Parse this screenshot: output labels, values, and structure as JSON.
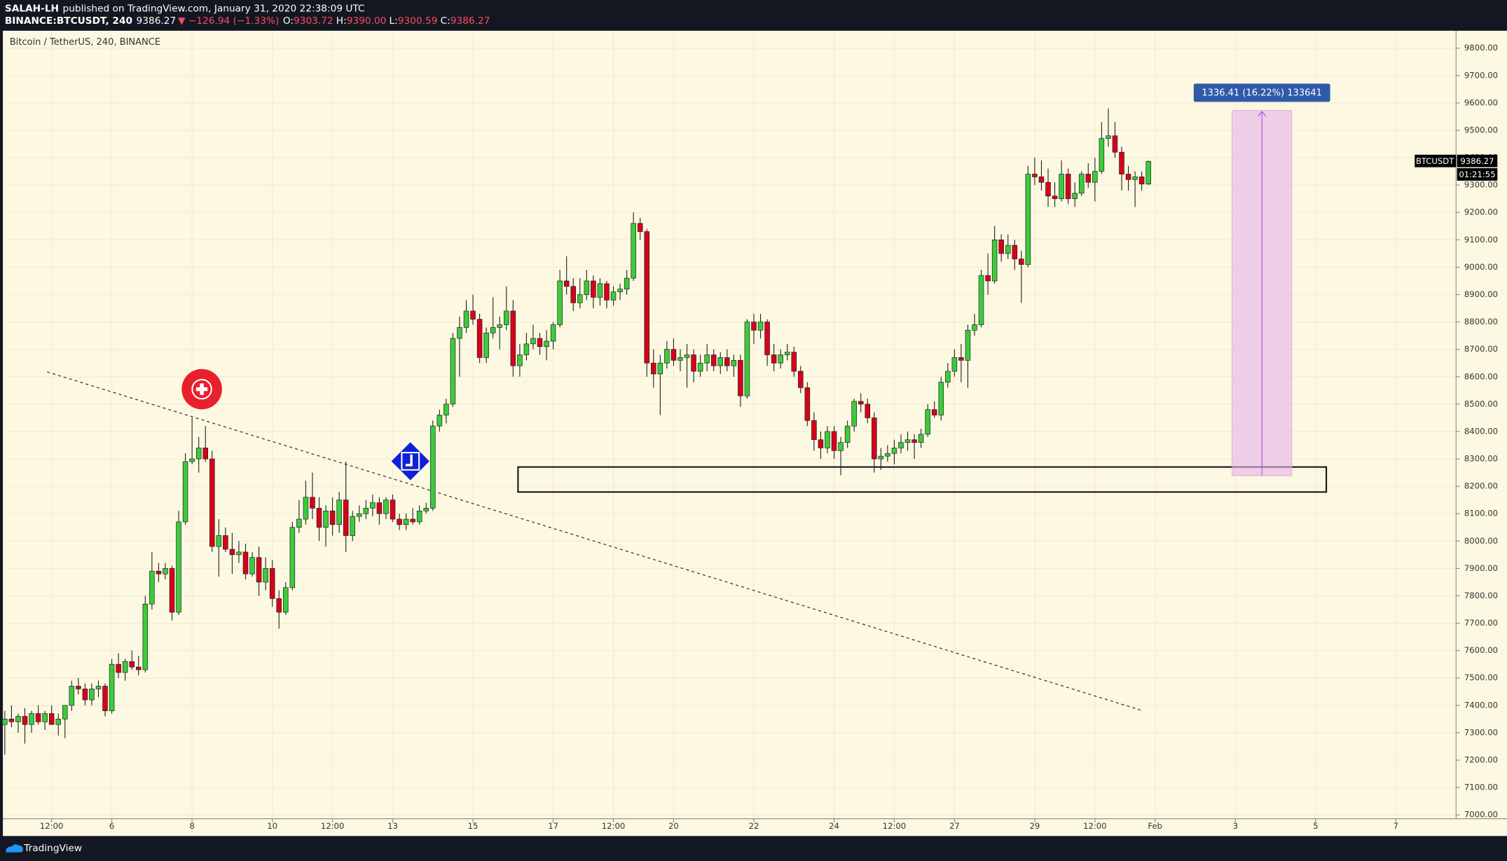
{
  "header": {
    "user": "SALAH-LH",
    "published": "published on TradingView.com, January 31, 2020 22:38:09 UTC",
    "symbol": "BINANCE:BTCUSDT, 240",
    "last": "9386.27",
    "change": "▼ −126.94 (−1.33%)",
    "open_label": "O:",
    "open": "9303.72",
    "high_label": "H:",
    "high": "9390.00",
    "low_label": "L:",
    "low": "9300.59",
    "close_label": "C:",
    "close": "9386.27"
  },
  "price_tag": {
    "symbol": "BTCUSDT",
    "price": "9386.27",
    "countdown": "01:21:55"
  },
  "measure_label": "1336.41 (16.22%) 133641",
  "footer": {
    "brand": "TradingView"
  },
  "chart_data": {
    "type": "candlestick",
    "title": "Bitcoin / TetherUS, 240, BINANCE",
    "up_color": "#3ccb3c",
    "down_color": "#d8001a",
    "border_color": "#1e1e1e",
    "grid": true,
    "xlim": [
      0,
      217
    ],
    "ylim": [
      6986,
      9860
    ],
    "xticks": [
      {
        "value": 7,
        "label": "12:00"
      },
      {
        "value": 16,
        "label": "6"
      },
      {
        "value": 28,
        "label": "8"
      },
      {
        "value": 40,
        "label": "10"
      },
      {
        "value": 49,
        "label": "12:00"
      },
      {
        "value": 58,
        "label": "13"
      },
      {
        "value": 70,
        "label": "15"
      },
      {
        "value": 82,
        "label": "17"
      },
      {
        "value": 91,
        "label": "12:00"
      },
      {
        "value": 100,
        "label": "20"
      },
      {
        "value": 112,
        "label": "22"
      },
      {
        "value": 124,
        "label": "24"
      },
      {
        "value": 133,
        "label": "12:00"
      },
      {
        "value": 142,
        "label": "27"
      },
      {
        "value": 154,
        "label": "29"
      },
      {
        "value": 163,
        "label": "12:00"
      },
      {
        "value": 172,
        "label": "Feb"
      },
      {
        "value": 184,
        "label": "3"
      },
      {
        "value": 196,
        "label": "5"
      },
      {
        "value": 208,
        "label": "7"
      }
    ],
    "yticks": [
      {
        "value": 7000,
        "label": "7000.00"
      },
      {
        "value": 7100,
        "label": "7100.00"
      },
      {
        "value": 7200,
        "label": "7200.00"
      },
      {
        "value": 7300,
        "label": "7300.00"
      },
      {
        "value": 7400,
        "label": "7400.00"
      },
      {
        "value": 7500,
        "label": "7500.00"
      },
      {
        "value": 7600,
        "label": "7600.00"
      },
      {
        "value": 7700,
        "label": "7700.00"
      },
      {
        "value": 7800,
        "label": "7800.00"
      },
      {
        "value": 7900,
        "label": "7900.00"
      },
      {
        "value": 8000,
        "label": "8000.00"
      },
      {
        "value": 8100,
        "label": "8100.00"
      },
      {
        "value": 8200,
        "label": "8200.00"
      },
      {
        "value": 8300,
        "label": "8300.00"
      },
      {
        "value": 8400,
        "label": "8400.00"
      },
      {
        "value": 8500,
        "label": "8500.00"
      },
      {
        "value": 8600,
        "label": "8600.00"
      },
      {
        "value": 8700,
        "label": "8700.00"
      },
      {
        "value": 8800,
        "label": "8800.00"
      },
      {
        "value": 8900,
        "label": "8900.00"
      },
      {
        "value": 9000,
        "label": "9000.00"
      },
      {
        "value": 9100,
        "label": "9100.00"
      },
      {
        "value": 9200,
        "label": "9200.00"
      },
      {
        "value": 9300,
        "label": "9300.00"
      },
      {
        "value": 9400,
        "label": "9400.00"
      },
      {
        "value": 9500,
        "label": "9500.00"
      },
      {
        "value": 9600,
        "label": "9600.00"
      },
      {
        "value": 9700,
        "label": "9700.00"
      },
      {
        "value": 9800,
        "label": "9800.00"
      }
    ],
    "candles": [
      [
        7330,
        7380,
        7220,
        7350
      ],
      [
        7350,
        7400,
        7320,
        7340
      ],
      [
        7340,
        7370,
        7300,
        7360
      ],
      [
        7360,
        7390,
        7260,
        7330
      ],
      [
        7330,
        7380,
        7300,
        7370
      ],
      [
        7370,
        7400,
        7330,
        7340
      ],
      [
        7340,
        7380,
        7310,
        7370
      ],
      [
        7370,
        7400,
        7340,
        7330
      ],
      [
        7330,
        7370,
        7290,
        7350
      ],
      [
        7350,
        7380,
        7280,
        7400
      ],
      [
        7400,
        7490,
        7380,
        7470
      ],
      [
        7470,
        7500,
        7440,
        7460
      ],
      [
        7460,
        7480,
        7400,
        7420
      ],
      [
        7420,
        7480,
        7400,
        7460
      ],
      [
        7460,
        7490,
        7430,
        7470
      ],
      [
        7470,
        7480,
        7360,
        7380
      ],
      [
        7380,
        7570,
        7370,
        7550
      ],
      [
        7550,
        7590,
        7500,
        7520
      ],
      [
        7520,
        7570,
        7490,
        7560
      ],
      [
        7560,
        7600,
        7530,
        7540
      ],
      [
        7540,
        7580,
        7510,
        7530
      ],
      [
        7530,
        7800,
        7520,
        7770
      ],
      [
        7770,
        7960,
        7750,
        7890
      ],
      [
        7890,
        7920,
        7850,
        7880
      ],
      [
        7880,
        7920,
        7860,
        7900
      ],
      [
        7900,
        7910,
        7710,
        7740
      ],
      [
        7740,
        8110,
        7730,
        8070
      ],
      [
        8070,
        8320,
        8060,
        8290
      ],
      [
        8290,
        8450,
        8280,
        8300
      ],
      [
        8300,
        8380,
        8250,
        8340
      ],
      [
        8340,
        8420,
        8290,
        8300
      ],
      [
        8300,
        8330,
        7960,
        7980
      ],
      [
        7980,
        8080,
        7870,
        8020
      ],
      [
        8020,
        8050,
        7960,
        7970
      ],
      [
        7970,
        8030,
        7880,
        7950
      ],
      [
        7950,
        8000,
        7920,
        7960
      ],
      [
        7960,
        7990,
        7860,
        7880
      ],
      [
        7880,
        7960,
        7870,
        7940
      ],
      [
        7940,
        7980,
        7800,
        7850
      ],
      [
        7850,
        7940,
        7820,
        7900
      ],
      [
        7900,
        7930,
        7760,
        7790
      ],
      [
        7790,
        7820,
        7680,
        7740
      ],
      [
        7740,
        7850,
        7730,
        7830
      ],
      [
        7830,
        8070,
        7820,
        8050
      ],
      [
        8050,
        8150,
        8030,
        8080
      ],
      [
        8080,
        8220,
        8060,
        8160
      ],
      [
        8160,
        8250,
        8080,
        8120
      ],
      [
        8120,
        8160,
        8000,
        8050
      ],
      [
        8050,
        8130,
        7980,
        8110
      ],
      [
        8110,
        8160,
        8020,
        8060
      ],
      [
        8060,
        8180,
        8030,
        8150
      ],
      [
        8150,
        8290,
        7960,
        8020
      ],
      [
        8020,
        8110,
        8000,
        8090
      ],
      [
        8090,
        8130,
        8070,
        8100
      ],
      [
        8100,
        8150,
        8080,
        8120
      ],
      [
        8120,
        8170,
        8090,
        8140
      ],
      [
        8140,
        8160,
        8060,
        8100
      ],
      [
        8100,
        8160,
        8080,
        8150
      ],
      [
        8150,
        8170,
        8070,
        8080
      ],
      [
        8080,
        8100,
        8040,
        8060
      ],
      [
        8060,
        8100,
        8040,
        8080
      ],
      [
        8080,
        8120,
        8060,
        8070
      ],
      [
        8070,
        8130,
        8060,
        8110
      ],
      [
        8110,
        8140,
        8100,
        8120
      ],
      [
        8120,
        8440,
        8110,
        8420
      ],
      [
        8420,
        8480,
        8400,
        8460
      ],
      [
        8460,
        8520,
        8430,
        8500
      ],
      [
        8500,
        8760,
        8490,
        8740
      ],
      [
        8740,
        8820,
        8600,
        8780
      ],
      [
        8780,
        8880,
        8760,
        8840
      ],
      [
        8840,
        8900,
        8790,
        8810
      ],
      [
        8810,
        8830,
        8650,
        8670
      ],
      [
        8670,
        8780,
        8650,
        8760
      ],
      [
        8760,
        8890,
        8740,
        8780
      ],
      [
        8780,
        8820,
        8700,
        8790
      ],
      [
        8790,
        8930,
        8770,
        8840
      ],
      [
        8840,
        8880,
        8600,
        8640
      ],
      [
        8640,
        8720,
        8600,
        8680
      ],
      [
        8680,
        8760,
        8660,
        8720
      ],
      [
        8720,
        8790,
        8700,
        8740
      ],
      [
        8740,
        8760,
        8680,
        8710
      ],
      [
        8710,
        8770,
        8660,
        8730
      ],
      [
        8730,
        8800,
        8700,
        8790
      ],
      [
        8790,
        8990,
        8780,
        8950
      ],
      [
        8950,
        9040,
        8900,
        8930
      ],
      [
        8930,
        8960,
        8840,
        8870
      ],
      [
        8870,
        8960,
        8850,
        8900
      ],
      [
        8900,
        8990,
        8880,
        8950
      ],
      [
        8950,
        8970,
        8850,
        8890
      ],
      [
        8890,
        8960,
        8860,
        8940
      ],
      [
        8940,
        8950,
        8850,
        8880
      ],
      [
        8880,
        8930,
        8860,
        8910
      ],
      [
        8910,
        8940,
        8880,
        8920
      ],
      [
        8920,
        8990,
        8900,
        8960
      ],
      [
        8960,
        9200,
        8950,
        9160
      ],
      [
        9160,
        9180,
        9100,
        9130
      ],
      [
        9130,
        9140,
        8600,
        8650
      ],
      [
        8650,
        8700,
        8560,
        8610
      ],
      [
        8610,
        8680,
        8460,
        8650
      ],
      [
        8650,
        8730,
        8630,
        8700
      ],
      [
        8700,
        8740,
        8640,
        8660
      ],
      [
        8660,
        8700,
        8620,
        8670
      ],
      [
        8670,
        8720,
        8560,
        8680
      ],
      [
        8680,
        8700,
        8580,
        8620
      ],
      [
        8620,
        8680,
        8600,
        8650
      ],
      [
        8650,
        8720,
        8620,
        8680
      ],
      [
        8680,
        8700,
        8620,
        8640
      ],
      [
        8640,
        8690,
        8610,
        8670
      ],
      [
        8670,
        8700,
        8620,
        8640
      ],
      [
        8640,
        8680,
        8600,
        8660
      ],
      [
        8660,
        8680,
        8490,
        8530
      ],
      [
        8530,
        8810,
        8520,
        8800
      ],
      [
        8800,
        8830,
        8720,
        8770
      ],
      [
        8770,
        8830,
        8740,
        8800
      ],
      [
        8800,
        8810,
        8640,
        8680
      ],
      [
        8680,
        8720,
        8620,
        8650
      ],
      [
        8650,
        8700,
        8630,
        8680
      ],
      [
        8680,
        8720,
        8660,
        8690
      ],
      [
        8690,
        8710,
        8600,
        8620
      ],
      [
        8620,
        8640,
        8540,
        8560
      ],
      [
        8560,
        8580,
        8420,
        8440
      ],
      [
        8440,
        8470,
        8330,
        8370
      ],
      [
        8370,
        8400,
        8300,
        8340
      ],
      [
        8340,
        8420,
        8320,
        8400
      ],
      [
        8400,
        8420,
        8300,
        8330
      ],
      [
        8330,
        8380,
        8240,
        8360
      ],
      [
        8360,
        8440,
        8340,
        8420
      ],
      [
        8420,
        8520,
        8400,
        8510
      ],
      [
        8510,
        8540,
        8470,
        8500
      ],
      [
        8500,
        8520,
        8430,
        8450
      ],
      [
        8450,
        8470,
        8250,
        8300
      ],
      [
        8300,
        8340,
        8260,
        8310
      ],
      [
        8310,
        8350,
        8290,
        8320
      ],
      [
        8320,
        8370,
        8280,
        8340
      ],
      [
        8340,
        8390,
        8320,
        8360
      ],
      [
        8360,
        8400,
        8330,
        8370
      ],
      [
        8370,
        8390,
        8300,
        8360
      ],
      [
        8360,
        8410,
        8340,
        8390
      ],
      [
        8390,
        8500,
        8380,
        8480
      ],
      [
        8480,
        8510,
        8450,
        8460
      ],
      [
        8460,
        8600,
        8440,
        8580
      ],
      [
        8580,
        8650,
        8560,
        8620
      ],
      [
        8620,
        8700,
        8600,
        8670
      ],
      [
        8670,
        8720,
        8580,
        8660
      ],
      [
        8660,
        8790,
        8560,
        8770
      ],
      [
        8770,
        8830,
        8750,
        8790
      ],
      [
        8790,
        8990,
        8780,
        8970
      ],
      [
        8970,
        9050,
        8900,
        8950
      ],
      [
        8950,
        9150,
        8940,
        9100
      ],
      [
        9100,
        9120,
        9020,
        9050
      ],
      [
        9050,
        9120,
        9030,
        9080
      ],
      [
        9080,
        9100,
        8990,
        9030
      ],
      [
        9030,
        9060,
        8870,
        9010
      ],
      [
        9010,
        9370,
        9000,
        9340
      ],
      [
        9340,
        9400,
        9300,
        9330
      ],
      [
        9330,
        9390,
        9280,
        9310
      ],
      [
        9310,
        9360,
        9220,
        9260
      ],
      [
        9260,
        9310,
        9220,
        9250
      ],
      [
        9250,
        9390,
        9240,
        9340
      ],
      [
        9340,
        9360,
        9230,
        9250
      ],
      [
        9250,
        9310,
        9220,
        9270
      ],
      [
        9270,
        9350,
        9260,
        9340
      ],
      [
        9340,
        9380,
        9290,
        9310
      ],
      [
        9310,
        9400,
        9240,
        9350
      ],
      [
        9350,
        9530,
        9340,
        9470
      ],
      [
        9470,
        9580,
        9440,
        9480
      ],
      [
        9480,
        9530,
        9400,
        9420
      ],
      [
        9420,
        9440,
        9280,
        9340
      ],
      [
        9340,
        9370,
        9280,
        9320
      ],
      [
        9320,
        9350,
        9220,
        9330
      ],
      [
        9330,
        9350,
        9280,
        9303.72
      ],
      [
        9303.72,
        9390,
        9300.59,
        9386.27
      ]
    ]
  }
}
